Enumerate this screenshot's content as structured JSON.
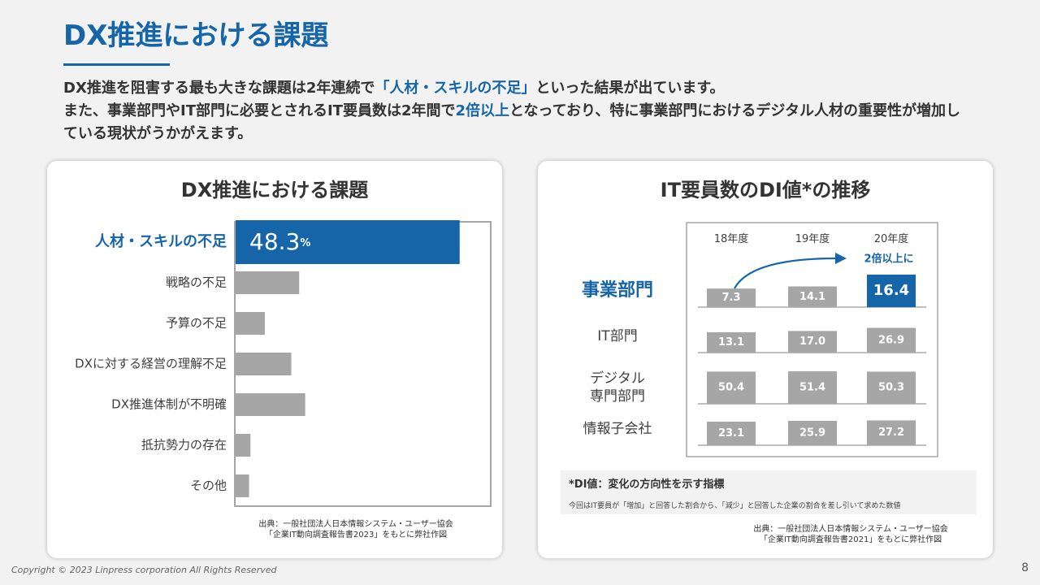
{
  "page": {
    "title": "DX推進における課題",
    "intro": {
      "line1_pre": "DX推進を阻害する最も大きな課題は2年連続で",
      "line1_hl": "「人材・スキルの不足」",
      "line1_post": "といった結果が出ています。",
      "line2_pre": "また、事業部門やIT部門に必要とされるIT要員数は2年間で",
      "line2_hl": "2倍以上",
      "line2_post": "となっており、特に事業部門におけるデジタル人材の重要性が増加している現状がうかがえます。"
    },
    "footer": "Copyright © 2023 Linpress corporation All Rights Reserved",
    "page_number": "8",
    "colors": {
      "accent": "#1565a8",
      "bar_gray": "#a6a6a6",
      "text": "#404040"
    }
  },
  "left_card": {
    "title": "DX推進における課題",
    "source_line1": "出典：一般社団法人日本情報システム・ユーザー協会",
    "source_line2": "「企業IT動向調査報告書2023」をもとに弊社作図"
  },
  "right_card": {
    "title": "IT要員数のDI値*の推移",
    "note_title": "*DI値：変化の方向性を示す指標",
    "note_desc": "今回はIT要員が「増加」と回答した割合から、「減少」と回答した企業の割合を差し引いて求めた数値",
    "source_line1": "出典：一般社団法人日本情報システム・ユーザー協会",
    "source_line2": "「企業IT動向調査報告書2021」をもとに弊社作図"
  },
  "chart_data": [
    {
      "type": "bar",
      "orientation": "horizontal",
      "title": "DX推進における課題",
      "categories": [
        "人材・スキルの不足",
        "戦略の不足",
        "予算の不足",
        "DXに対する経営の理解不足",
        "DX推進体制が不明確",
        "抵抗勢力の存在",
        "その他"
      ],
      "values": [
        48.3,
        13.7,
        6.3,
        12.0,
        15.0,
        3.2,
        2.9
      ],
      "value_labels": [
        "48.3",
        "",
        "",
        "",
        "",
        "",
        ""
      ],
      "value_unit": "%",
      "highlight_index": 0,
      "xlim": [
        0,
        55
      ]
    },
    {
      "type": "bar",
      "title": "IT要員数のDI値*の推移",
      "categories": [
        "18年度",
        "19年度",
        "20年度"
      ],
      "groups": [
        "事業部門",
        "IT部門",
        "デジタル専門部門",
        "情報子会社"
      ],
      "group_label_lines": [
        [
          "事業部門"
        ],
        [
          "IT部門"
        ],
        [
          "デジタル",
          "専門部門"
        ],
        [
          "情報子会社"
        ]
      ],
      "series": [
        {
          "name": "事業部門",
          "values": [
            7.3,
            14.1,
            16.4
          ]
        },
        {
          "name": "IT部門",
          "values": [
            13.1,
            17.0,
            26.9
          ]
        },
        {
          "name": "デジタル専門部門",
          "values": [
            50.4,
            51.4,
            50.3
          ]
        },
        {
          "name": "情報子会社",
          "values": [
            23.1,
            25.9,
            27.2
          ]
        }
      ],
      "value_labels": [
        [
          "7.3",
          "14.1",
          "16.4"
        ],
        [
          "13.1",
          "17.0",
          "26.9"
        ],
        [
          "50.4",
          "51.4",
          "50.3"
        ],
        [
          "23.1",
          "25.9",
          "27.2"
        ]
      ],
      "highlight": {
        "group": 0,
        "category": 2
      },
      "annotation": "2倍以上に"
    }
  ]
}
